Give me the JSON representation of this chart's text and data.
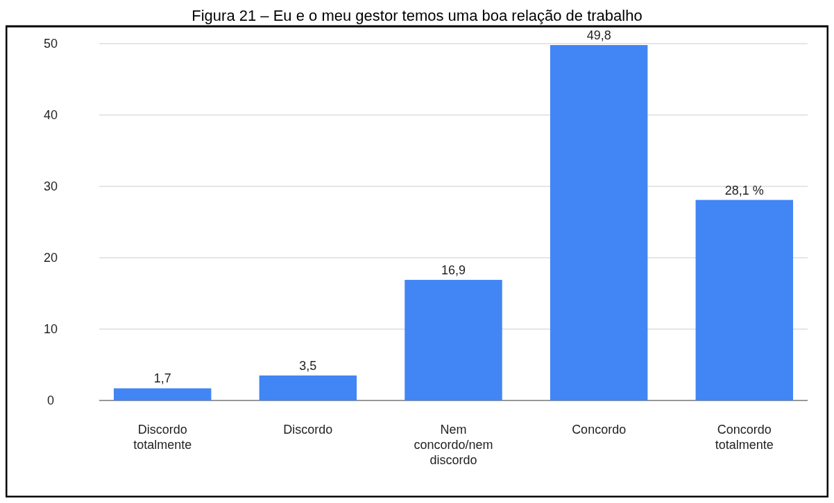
{
  "chart_data": {
    "type": "bar",
    "title": "Figura 21 – Eu e o meu gestor temos uma boa relação de trabalho",
    "categories": [
      "Discordo totalmente",
      "Discordo",
      "Nem concordo/nem discordo",
      "Concordo",
      "Concordo totalmente"
    ],
    "values": [
      1.7,
      3.5,
      16.9,
      49.8,
      28.1
    ],
    "value_labels": [
      "1,7",
      "3,5",
      "16,9",
      "49,8",
      "28,1 %"
    ],
    "color": "#4285f4",
    "ylim": [
      0,
      50
    ],
    "yticks": [
      0,
      10,
      20,
      30,
      40,
      50
    ],
    "grid": "y"
  }
}
